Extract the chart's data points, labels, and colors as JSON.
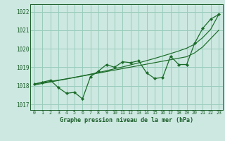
{
  "title": "Graphe pression niveau de la mer (hPa)",
  "bg_color": "#cce8e0",
  "grid_color": "#99ccbb",
  "line_color": "#1a6b28",
  "text_color": "#1a5c28",
  "xlim": [
    -0.5,
    23.5
  ],
  "ylim": [
    1016.7,
    1022.4
  ],
  "xticks": [
    0,
    1,
    2,
    3,
    4,
    5,
    6,
    7,
    8,
    9,
    10,
    11,
    12,
    13,
    14,
    15,
    16,
    17,
    18,
    19,
    20,
    21,
    22,
    23
  ],
  "yticks": [
    1017,
    1018,
    1019,
    1020,
    1021,
    1022
  ],
  "hours": [
    0,
    1,
    2,
    3,
    4,
    5,
    6,
    7,
    8,
    9,
    10,
    11,
    12,
    13,
    14,
    15,
    16,
    17,
    18,
    19,
    20,
    21,
    22,
    23
  ],
  "pressure_main": [
    1018.1,
    1018.2,
    1018.3,
    1017.9,
    1017.6,
    1017.65,
    1017.3,
    1018.5,
    1018.8,
    1019.15,
    1019.0,
    1019.3,
    1019.25,
    1019.35,
    1018.7,
    1018.4,
    1018.45,
    1019.6,
    1019.15,
    1019.15,
    1020.3,
    1021.1,
    1021.6,
    1021.85
  ],
  "pressure_smooth1": [
    1018.05,
    1018.13,
    1018.21,
    1018.29,
    1018.37,
    1018.45,
    1018.53,
    1018.61,
    1018.69,
    1018.77,
    1018.85,
    1018.93,
    1019.01,
    1019.09,
    1019.17,
    1019.25,
    1019.33,
    1019.41,
    1019.49,
    1019.57,
    1019.78,
    1020.1,
    1020.55,
    1021.0
  ],
  "pressure_smooth2": [
    1018.1,
    1018.17,
    1018.24,
    1018.31,
    1018.38,
    1018.46,
    1018.54,
    1018.63,
    1018.72,
    1018.82,
    1018.92,
    1019.02,
    1019.13,
    1019.24,
    1019.36,
    1019.48,
    1019.61,
    1019.74,
    1019.88,
    1020.03,
    1020.25,
    1020.6,
    1021.05,
    1021.85
  ]
}
